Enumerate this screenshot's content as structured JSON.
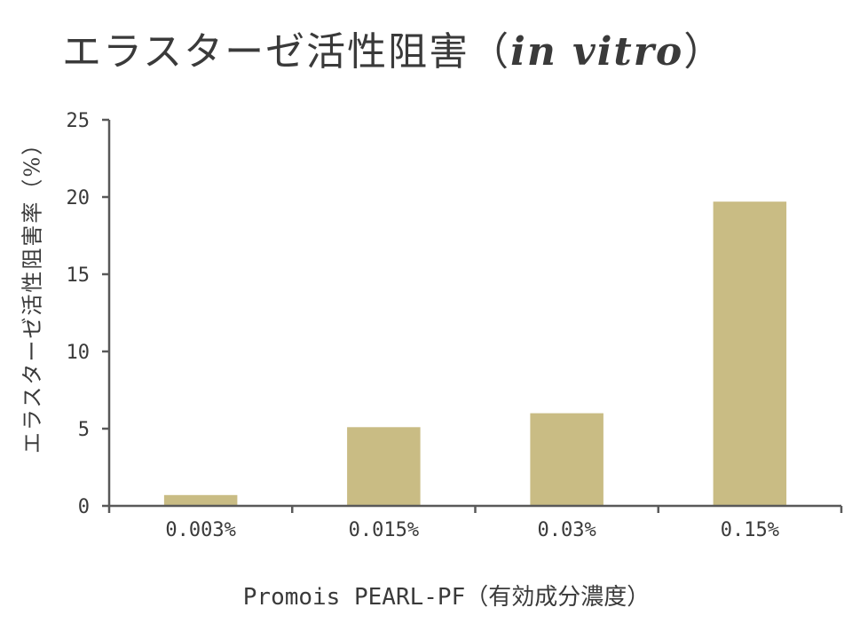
{
  "title": {
    "main": "エラスターゼ活性阻害",
    "paren_open": "（",
    "italic": "in vitro",
    "paren_close": "）"
  },
  "chart_data": {
    "type": "bar",
    "categories": [
      "0.003%",
      "0.015%",
      "0.03%",
      "0.15%"
    ],
    "values": [
      0.7,
      5.1,
      6.0,
      19.7
    ],
    "xlabel": "Promois PEARL-PF（有効成分濃度）",
    "ylabel": "エラスターゼ活性阻害率（%）",
    "ylim": [
      0,
      25
    ],
    "yticks": [
      0,
      5,
      10,
      15,
      20,
      25
    ],
    "grid": false,
    "legend": "none",
    "colors": {
      "bar": "#c9bc84",
      "axis": "#595959",
      "text": "#3a3a3a"
    }
  }
}
